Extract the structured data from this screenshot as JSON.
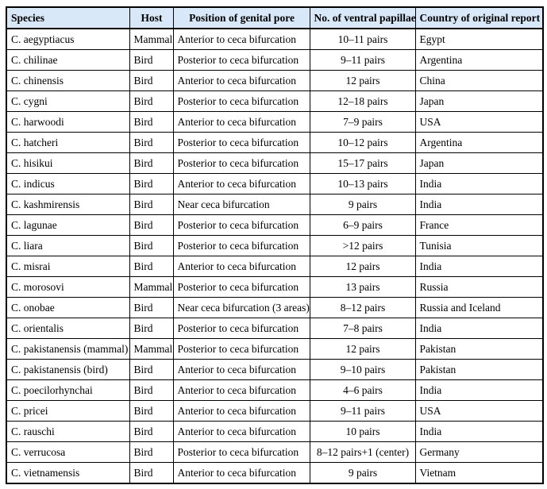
{
  "table": {
    "headers": [
      "Species",
      "Host",
      "Position of genital pore",
      "No. of ventral papillae",
      "Country of original report"
    ],
    "rows": [
      [
        "C. aegyptiacus",
        "Mammal",
        "Anterior to ceca bifurcation",
        "10–11 pairs",
        "Egypt"
      ],
      [
        "C. chilinae",
        "Bird",
        "Posterior to ceca bifurcation",
        "9–11 pairs",
        "Argentina"
      ],
      [
        "C. chinensis",
        "Bird",
        "Anterior to ceca bifurcation",
        "12 pairs",
        "China"
      ],
      [
        "C. cygni",
        "Bird",
        "Posterior to ceca bifurcation",
        "12–18 pairs",
        "Japan"
      ],
      [
        "C. harwoodi",
        "Bird",
        "Anterior to ceca bifurcation",
        "7–9 pairs",
        "USA"
      ],
      [
        "C. hatcheri",
        "Bird",
        "Posterior to ceca bifurcation",
        "10–12 pairs",
        "Argentina"
      ],
      [
        "C. hisikui",
        "Bird",
        "Posterior to ceca bifurcation",
        "15–17 pairs",
        "Japan"
      ],
      [
        "C. indicus",
        "Bird",
        "Anterior to ceca bifurcation",
        "10–13 pairs",
        "India"
      ],
      [
        "C. kashmirensis",
        "Bird",
        "Near ceca bifurcation",
        "9 pairs",
        "India"
      ],
      [
        "C. lagunae",
        "Bird",
        "Posterior to ceca bifurcation",
        "6–9 pairs",
        "France"
      ],
      [
        "C. liara",
        "Bird",
        "Posterior to ceca bifurcation",
        ">12 pairs",
        "Tunisia"
      ],
      [
        "C. misrai",
        "Bird",
        "Anterior to ceca bifurcation",
        "12 pairs",
        "India"
      ],
      [
        "C. morosovi",
        "Mammal",
        "Posterior to ceca bifurcation",
        "13 pairs",
        "Russia"
      ],
      [
        "C. onobae",
        "Bird",
        "Near ceca bifurcation (3 areas)",
        "8–12 pairs",
        "Russia and Iceland"
      ],
      [
        "C. orientalis",
        "Bird",
        "Posterior to ceca bifurcation",
        "7–8 pairs",
        "India"
      ],
      [
        "C. pakistanensis (mammal)",
        "Mammal",
        "Posterior to ceca bifurcation",
        "12 pairs",
        "Pakistan"
      ],
      [
        "C. pakistanensis (bird)",
        "Bird",
        "Anterior to ceca bifurcation",
        "9–10 pairs",
        "Pakistan"
      ],
      [
        "C. poecilorhynchai",
        "Bird",
        "Anterior to ceca bifurcation",
        "4–6 pairs",
        "India"
      ],
      [
        "C. pricei",
        "Bird",
        "Anterior to ceca bifurcation",
        "9–11 pairs",
        "USA"
      ],
      [
        "C. rauschi",
        "Bird",
        "Anterior to ceca bifurcation",
        "10 pairs",
        "India"
      ],
      [
        "C. verrucosa",
        "Bird",
        "Posterior to ceca bifurcation",
        "8–12 pairs+1 (center)",
        "Germany"
      ],
      [
        "C. vietnamensis",
        "Bird",
        "Anterior to ceca bifurcation",
        "9 pairs",
        "Vietnam"
      ]
    ],
    "column_keys": [
      "species",
      "host",
      "position",
      "papillae",
      "country"
    ],
    "header_bg_color": "#d9e8f8",
    "border_color": "#000000"
  }
}
